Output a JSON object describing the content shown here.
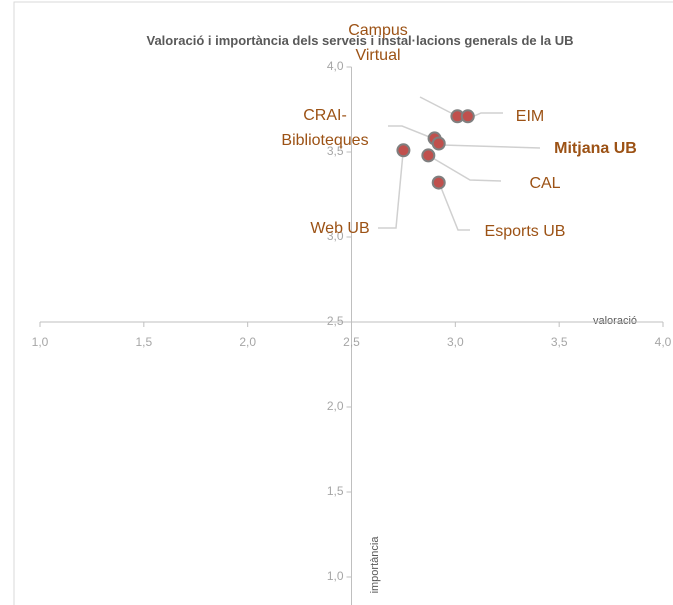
{
  "chart_data": {
    "type": "scatter",
    "title": "Valoració i importància dels serveis i instal·lacions generals de la UB",
    "x_label": "valoració",
    "y_label": "importància",
    "labels": [
      "Campus Virtual",
      "EIM",
      "CRAI-Biblioteques",
      "Mitjana UB",
      "CAL",
      "Web UB",
      "Esports UB"
    ],
    "x": [
      3.01,
      3.06,
      2.9,
      2.92,
      2.87,
      2.75,
      2.92
    ],
    "values": [
      3.71,
      3.71,
      3.58,
      3.55,
      3.48,
      3.51,
      3.32
    ],
    "color": "#c0504d",
    "label_color": "#9c5215",
    "xlim": [
      1,
      4
    ],
    "ylim": [
      1,
      4
    ],
    "xticks": [
      {
        "value": 1,
        "label": "1,0"
      },
      {
        "value": 1.5,
        "label": "1,5"
      },
      {
        "value": 2,
        "label": "2,0"
      },
      {
        "value": 2.5,
        "label": "2,5"
      },
      {
        "value": 3,
        "label": "3,0"
      },
      {
        "value": 3.5,
        "label": "3,5"
      },
      {
        "value": 4,
        "label": "4,0"
      }
    ],
    "yticks": [
      {
        "value": 1,
        "label": "1,0"
      },
      {
        "value": 1.5,
        "label": "1,5"
      },
      {
        "value": 2,
        "label": "2,0"
      },
      {
        "value": 2.5,
        "label": "2,5"
      },
      {
        "value": 3,
        "label": "3,0"
      },
      {
        "value": 3.5,
        "label": "3,5"
      },
      {
        "value": 4,
        "label": "4,0"
      }
    ]
  }
}
